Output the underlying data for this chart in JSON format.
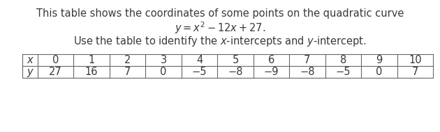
{
  "line1": "This table shows the coordinates of some points on the quadratic curve",
  "line2": "$y = x^2 - 12x + 27.$",
  "line3": "Use the table to identify the $x$-intercepts and $y$-intercept.",
  "x_labels": [
    "x",
    "0",
    "1",
    "2",
    "3",
    "4",
    "5",
    "6",
    "7",
    "8",
    "9",
    "10"
  ],
  "y_labels": [
    "y",
    "27",
    "16",
    "7",
    "0",
    "−5",
    "−8",
    "−9",
    "−8",
    "−5",
    "0",
    "7"
  ],
  "bg_color": "#ffffff",
  "text_color": "#3a3a3a",
  "table_text_color": "#3a3a3a",
  "table_line_color": "#666666",
  "font_size_main": 10.5,
  "font_size_table": 10.5
}
